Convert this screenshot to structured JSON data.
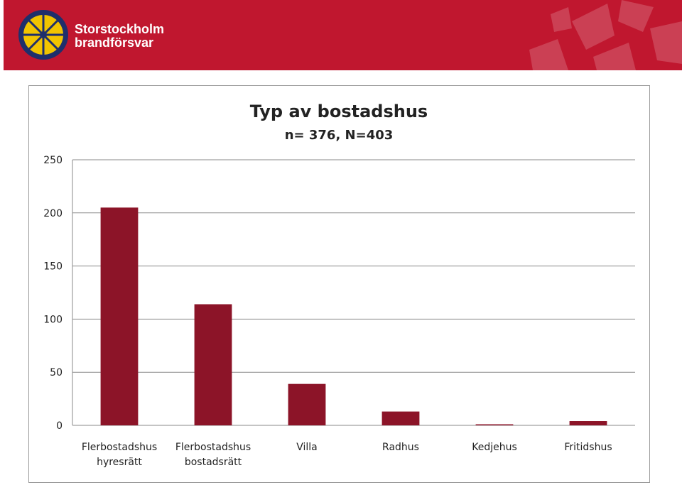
{
  "header": {
    "brand_line1": "Storstockholm",
    "brand_line2": "brandförsvar",
    "background_color": "#c0172f",
    "logo_icon": "compass-star-emblem-icon"
  },
  "chart_data": {
    "type": "bar",
    "title": "Typ av bostadshus",
    "subtitle": "n= 376, N=403",
    "categories": [
      [
        "Flerbostadshus",
        "hyresrätt"
      ],
      [
        "Flerbostadshus",
        "bostadsrätt"
      ],
      [
        "Villa"
      ],
      [
        "Radhus"
      ],
      [
        "Kedjehus"
      ],
      [
        "Fritidshus"
      ]
    ],
    "values": [
      205,
      114,
      39,
      13,
      1,
      4
    ],
    "ylim": [
      0,
      250
    ],
    "yticks": [
      "0",
      "50",
      "100",
      "150",
      "200",
      "250"
    ],
    "grid": true,
    "legend": "none",
    "bar_color": "#8c1428"
  }
}
